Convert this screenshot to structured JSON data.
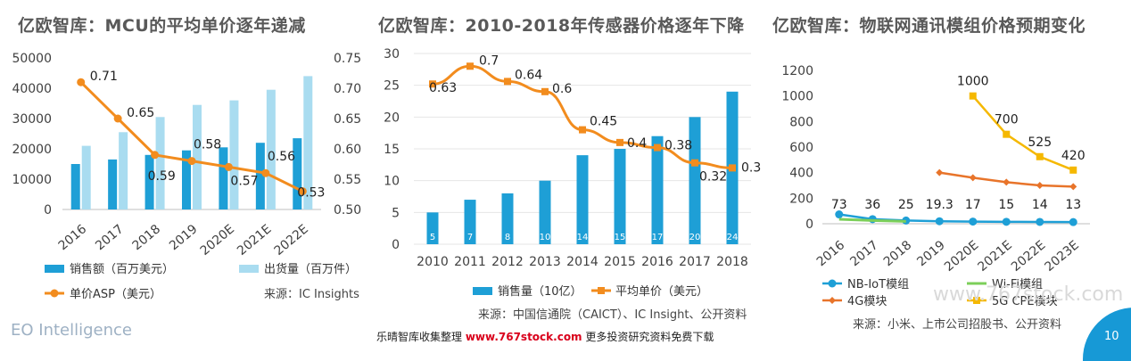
{
  "chart_data": [
    {
      "type": "bar+line",
      "title": "亿欧智库：MCU的平均单价逐年递减",
      "categories": [
        "2016",
        "2017",
        "2018",
        "2019",
        "2020E",
        "2021E",
        "2022E"
      ],
      "left_ylim": [
        0,
        50000
      ],
      "left_yticks": [
        "0",
        "10000",
        "20000",
        "30000",
        "40000",
        "50000"
      ],
      "right_ylim": [
        0.5,
        0.75
      ],
      "right_yticks": [
        "0.50",
        "0.55",
        "0.60",
        "0.65",
        "0.70",
        "0.75"
      ],
      "series": [
        {
          "name": "销售额（百万美元）",
          "kind": "bar",
          "axis": "left",
          "color": "#1e9fd6",
          "values": [
            15000,
            16500,
            18000,
            19500,
            20500,
            22000,
            23500
          ]
        },
        {
          "name": "出货量（百万件）",
          "kind": "bar",
          "axis": "left",
          "color": "#a9dcf0",
          "values": [
            21000,
            25500,
            30500,
            34500,
            36000,
            39500,
            44000
          ]
        },
        {
          "name": "单价ASP（美元）",
          "kind": "line",
          "axis": "right",
          "color": "#f28c1e",
          "values": [
            0.71,
            0.65,
            0.59,
            0.58,
            0.57,
            0.56,
            0.53
          ],
          "labels": [
            "0.71",
            "0.65",
            "0.59",
            "0.58",
            "0.57",
            "0.56",
            "0.53"
          ]
        }
      ],
      "source": "来源：IC Insights"
    },
    {
      "type": "bar+line",
      "title": "亿欧智库：2010-2018年传感器价格逐年下降",
      "categories": [
        "2010",
        "2011",
        "2012",
        "2013",
        "2014",
        "2015",
        "2016",
        "2017",
        "2018"
      ],
      "left_ylim": [
        0,
        30
      ],
      "left_yticks": [
        "0",
        "5",
        "10",
        "15",
        "20",
        "25",
        "30"
      ],
      "series": [
        {
          "name": "销售量（10亿）",
          "kind": "bar",
          "axis": "left",
          "color": "#1e9fd6",
          "values": [
            5,
            7,
            8,
            10,
            14,
            15,
            17,
            20,
            24
          ],
          "labels": [
            "5",
            "7",
            "8",
            "10",
            "14",
            "15",
            "17",
            "20",
            "24"
          ]
        },
        {
          "name": "平均单价（美元）",
          "kind": "line",
          "axis": "left",
          "scale": 40,
          "color": "#f28c1e",
          "values": [
            0.63,
            0.7,
            0.64,
            0.6,
            0.45,
            0.4,
            0.38,
            0.32,
            0.3
          ],
          "labels": [
            "0.63",
            "0.7",
            "0.64",
            "0.6",
            "0.45",
            "0.4",
            "0.38",
            "0.32",
            "0.3"
          ]
        }
      ],
      "source": "来源：中国信通院（CAICT）、IC Insight、公开资料"
    },
    {
      "type": "line",
      "title": "亿欧智库：物联网通讯模组价格预期变化",
      "categories": [
        "2016",
        "2017",
        "2018",
        "2019",
        "2020E",
        "2021E",
        "2022E",
        "2023E"
      ],
      "ylim": [
        0,
        1200
      ],
      "yticks": [
        "0",
        "200",
        "400",
        "600",
        "800",
        "1000",
        "1200"
      ],
      "series": [
        {
          "name": "NB-IoT模组",
          "color": "#1e9fd6",
          "marker": "circle",
          "values": [
            73,
            36,
            25,
            19.3,
            17,
            15,
            14,
            13
          ],
          "labels": [
            "73",
            "36",
            "25",
            "19.3",
            "17",
            "15",
            "14",
            "13"
          ]
        },
        {
          "name": "Wi-Fi模组",
          "color": "#7ccf5a",
          "marker": "none",
          "values": [
            35,
            25,
            18,
            null,
            null,
            null,
            null,
            null
          ]
        },
        {
          "name": "4G模块",
          "color": "#e8742a",
          "marker": "diamond",
          "values": [
            null,
            null,
            null,
            400,
            360,
            325,
            300,
            290
          ]
        },
        {
          "name": "5G CPE模块",
          "color": "#f5b800",
          "marker": "square",
          "values": [
            null,
            null,
            null,
            null,
            1000,
            700,
            525,
            420
          ],
          "labels": [
            null,
            null,
            null,
            null,
            "1000",
            "700",
            "525",
            "420"
          ]
        }
      ],
      "source": "来源：小米、上市公司招股书、公开资料"
    }
  ],
  "footer": {
    "brand": "EO Intelligence",
    "banner_prefix": "乐晴智库收集整理 ",
    "banner_url": "www.767stock.com",
    "banner_suffix": " 更多投资研究资料免费下载",
    "watermark": "www.767stock.com",
    "page_number": "10"
  }
}
